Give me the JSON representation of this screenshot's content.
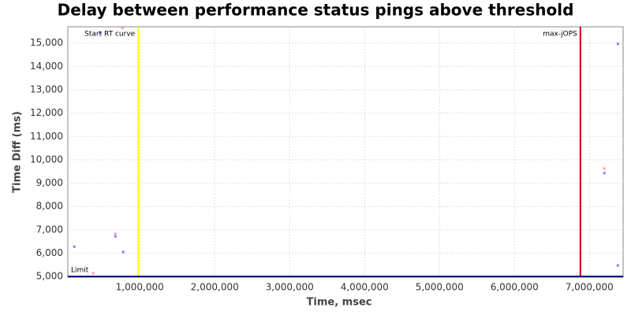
{
  "chart_data": {
    "type": "scatter",
    "title": "Delay between performance status pings above threshold",
    "x_label": "Time, msec",
    "y_label": "Time Diff (ms)",
    "xlim": [
      40000,
      7450000
    ],
    "ylim": [
      4970,
      15700
    ],
    "xticks": [
      {
        "value": 1000000,
        "label": "1,000,000"
      },
      {
        "value": 2000000,
        "label": "2,000,000"
      },
      {
        "value": 3000000,
        "label": "3,000,000"
      },
      {
        "value": 4000000,
        "label": "4,000,000"
      },
      {
        "value": 5000000,
        "label": "5,000,000"
      },
      {
        "value": 6000000,
        "label": "6,000,000"
      },
      {
        "value": 7000000,
        "label": "7,000,000"
      }
    ],
    "yticks": [
      {
        "value": 5000,
        "label": "5,000"
      },
      {
        "value": 6000,
        "label": "6,000"
      },
      {
        "value": 7000,
        "label": "7,000"
      },
      {
        "value": 8000,
        "label": "8,000"
      },
      {
        "value": 9000,
        "label": "9,000"
      },
      {
        "value": 10000,
        "label": "10,000"
      },
      {
        "value": 11000,
        "label": "11,000"
      },
      {
        "value": 12000,
        "label": "12,000"
      },
      {
        "value": 13000,
        "label": "13,000"
      },
      {
        "value": 14000,
        "label": "14,000"
      },
      {
        "value": 15000,
        "label": "15,000"
      }
    ],
    "grid": true,
    "series": [
      {
        "color": "#7f7fff",
        "x": [
          126000,
          474000,
          674000,
          779000,
          7200000,
          7380000,
          7380000
        ],
        "values": [
          6280,
          15440,
          6720,
          6050,
          9430,
          14970,
          5470
        ]
      },
      {
        "color": "#ff9f9f",
        "x": [
          379000,
          768000,
          674000,
          7200000
        ],
        "values": [
          5135,
          15640,
          6830,
          9630
        ]
      }
    ],
    "markers": [
      {
        "label": "Start RT curve",
        "x": 979000,
        "color": "#ffff00"
      },
      {
        "label": "max-jOPS",
        "x": 6880000,
        "color": "#cc0000"
      }
    ],
    "limit": {
      "label": "Limit",
      "y": 5000,
      "color": "#000080"
    }
  }
}
